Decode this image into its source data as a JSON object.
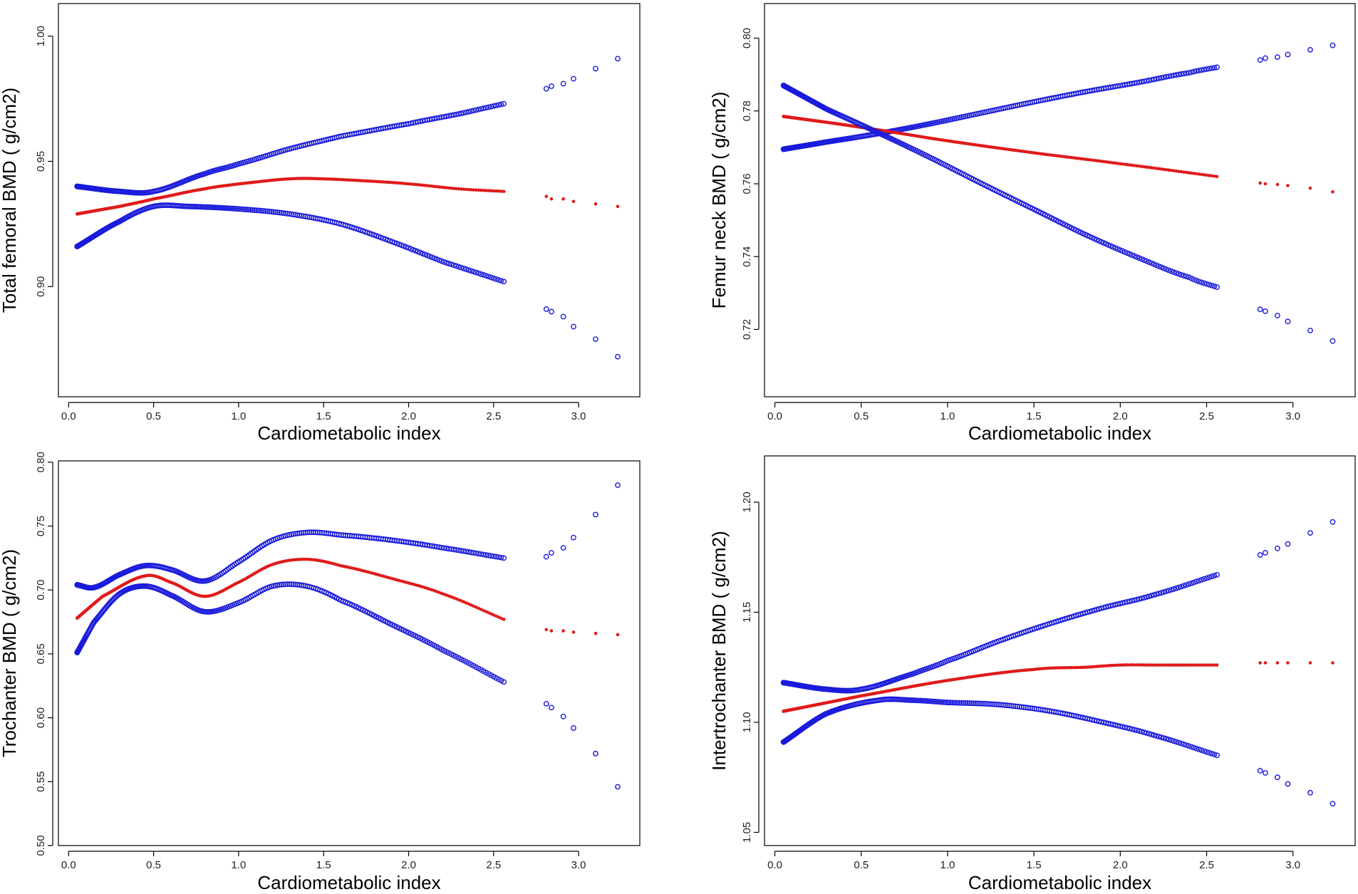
{
  "colors": {
    "ci": "#1a1adc",
    "fit": "#e01a1a",
    "axis": "#000000"
  },
  "chart_data": [
    {
      "type": "scatter",
      "xlabel": "Cardiometabolic index",
      "ylabel": "Total femoral BMD ( g/cm2)",
      "xticks": [
        0.0,
        0.5,
        1.0,
        1.5,
        2.0,
        2.5,
        3.0
      ],
      "yticks": [
        0.9,
        0.95,
        1.0
      ],
      "xlim": [
        -0.06,
        3.36
      ],
      "ylim": [
        0.856,
        1.013
      ],
      "series": [
        {
          "name": "upper CI",
          "role": "ci",
          "x": [
            0.05,
            0.3,
            0.5,
            0.8,
            1.0,
            1.3,
            1.6,
            2.0,
            2.3,
            2.56
          ],
          "y": [
            0.94,
            0.938,
            0.938,
            0.945,
            0.949,
            0.955,
            0.96,
            0.965,
            0.969,
            0.973
          ]
        },
        {
          "name": "fit",
          "role": "fit",
          "x": [
            0.05,
            0.3,
            0.5,
            0.8,
            1.0,
            1.3,
            1.5,
            1.8,
            2.0,
            2.3,
            2.56
          ],
          "y": [
            0.929,
            0.932,
            0.935,
            0.939,
            0.941,
            0.943,
            0.943,
            0.942,
            0.941,
            0.939,
            0.938
          ]
        },
        {
          "name": "lower CI",
          "role": "ci",
          "x": [
            0.05,
            0.3,
            0.5,
            0.7,
            1.0,
            1.3,
            1.6,
            1.9,
            2.2,
            2.56
          ],
          "y": [
            0.916,
            0.926,
            0.932,
            0.932,
            0.931,
            0.929,
            0.925,
            0.918,
            0.91,
            0.902
          ]
        }
      ],
      "outliers_x": [
        2.81,
        2.84,
        2.91,
        2.97,
        3.1,
        3.23
      ],
      "outliers": [
        {
          "role": "ci",
          "y": [
            0.979,
            0.98,
            0.981,
            0.983,
            0.987,
            0.991
          ]
        },
        {
          "role": "fit",
          "y": [
            0.936,
            0.935,
            0.935,
            0.934,
            0.933,
            0.932
          ]
        },
        {
          "role": "ci",
          "y": [
            0.891,
            0.89,
            0.888,
            0.884,
            0.879,
            0.872
          ]
        }
      ]
    },
    {
      "type": "scatter",
      "xlabel": "Cardiometabolic index",
      "ylabel": "Femur neck BMD ( g/cm2)",
      "xticks": [
        0.0,
        0.5,
        1.0,
        1.5,
        2.0,
        2.5,
        3.0
      ],
      "yticks": [
        0.72,
        0.74,
        0.76,
        0.78,
        0.8
      ],
      "xlim": [
        -0.06,
        3.36
      ],
      "ylim": [
        0.7015,
        0.8095
      ],
      "series": [
        {
          "name": "upper CI",
          "role": "ci",
          "x": [
            0.05,
            0.3,
            0.6,
            0.9,
            1.2,
            1.5,
            1.8,
            2.1,
            2.4,
            2.56
          ],
          "y": [
            0.7695,
            0.7715,
            0.7738,
            0.7765,
            0.7795,
            0.7825,
            0.7853,
            0.7878,
            0.7905,
            0.792
          ]
        },
        {
          "name": "fit",
          "role": "fit",
          "x": [
            0.05,
            0.5,
            1.0,
            1.5,
            2.0,
            2.56
          ],
          "y": [
            0.7785,
            0.7755,
            0.7718,
            0.7685,
            0.7655,
            0.762
          ]
        },
        {
          "name": "lower CI",
          "role": "ci",
          "x": [
            0.05,
            0.3,
            0.6,
            0.9,
            1.2,
            1.5,
            1.8,
            2.1,
            2.4,
            2.56
          ],
          "y": [
            0.787,
            0.7805,
            0.774,
            0.7672,
            0.76,
            0.753,
            0.746,
            0.7398,
            0.7343,
            0.7316
          ]
        }
      ],
      "outliers_x": [
        2.81,
        2.84,
        2.91,
        2.97,
        3.1,
        3.23
      ],
      "outliers": [
        {
          "role": "ci",
          "y": [
            0.794,
            0.7945,
            0.7948,
            0.7955,
            0.7968,
            0.798
          ]
        },
        {
          "role": "fit",
          "y": [
            0.7602,
            0.76,
            0.7598,
            0.7595,
            0.7588,
            0.7578
          ]
        },
        {
          "role": "ci",
          "y": [
            0.7255,
            0.725,
            0.7238,
            0.7222,
            0.7197,
            0.7168
          ]
        }
      ]
    },
    {
      "type": "scatter",
      "xlabel": "Cardiometabolic index",
      "ylabel": "Trochanter BMD ( g/cm2)",
      "xticks": [
        0.0,
        0.5,
        1.0,
        1.5,
        2.0,
        2.5,
        3.0
      ],
      "yticks": [
        0.5,
        0.55,
        0.6,
        0.65,
        0.7,
        0.75,
        0.8
      ],
      "xlim": [
        -0.06,
        3.36
      ],
      "ylim": [
        0.5,
        0.801
      ],
      "series": [
        {
          "name": "upper CI",
          "role": "ci",
          "x": [
            0.05,
            0.15,
            0.3,
            0.45,
            0.6,
            0.8,
            1.0,
            1.2,
            1.4,
            1.6,
            1.9,
            2.2,
            2.56
          ],
          "y": [
            0.704,
            0.702,
            0.712,
            0.719,
            0.716,
            0.707,
            0.722,
            0.739,
            0.745,
            0.743,
            0.739,
            0.733,
            0.725
          ]
        },
        {
          "name": "fit",
          "role": "fit",
          "x": [
            0.05,
            0.2,
            0.45,
            0.6,
            0.8,
            1.0,
            1.2,
            1.4,
            1.6,
            1.9,
            2.2,
            2.56
          ],
          "y": [
            0.678,
            0.695,
            0.711,
            0.706,
            0.695,
            0.706,
            0.72,
            0.724,
            0.719,
            0.709,
            0.697,
            0.677
          ]
        },
        {
          "name": "lower CI",
          "role": "ci",
          "x": [
            0.05,
            0.15,
            0.3,
            0.45,
            0.6,
            0.8,
            1.0,
            1.2,
            1.4,
            1.6,
            1.9,
            2.2,
            2.56
          ],
          "y": [
            0.651,
            0.675,
            0.697,
            0.703,
            0.696,
            0.683,
            0.69,
            0.703,
            0.703,
            0.692,
            0.673,
            0.653,
            0.628
          ]
        }
      ],
      "outliers_x": [
        2.81,
        2.84,
        2.91,
        2.97,
        3.1,
        3.23
      ],
      "outliers": [
        {
          "role": "ci",
          "y": [
            0.726,
            0.729,
            0.733,
            0.741,
            0.759,
            0.782
          ]
        },
        {
          "role": "fit",
          "y": [
            0.669,
            0.668,
            0.668,
            0.667,
            0.666,
            0.665
          ]
        },
        {
          "role": "ci",
          "y": [
            0.611,
            0.608,
            0.601,
            0.592,
            0.572,
            0.546
          ]
        }
      ]
    },
    {
      "type": "scatter",
      "xlabel": "Cardiometabolic index",
      "ylabel": "Intertrochanter BMD ( g/cm2)",
      "xticks": [
        0.0,
        0.5,
        1.0,
        1.5,
        2.0,
        2.5,
        3.0
      ],
      "yticks": [
        1.05,
        1.1,
        1.15,
        1.2
      ],
      "xlim": [
        -0.06,
        3.36
      ],
      "ylim": [
        1.044,
        1.221
      ],
      "series": [
        {
          "name": "upper CI",
          "role": "ci",
          "x": [
            0.05,
            0.3,
            0.5,
            0.8,
            1.0,
            1.3,
            1.6,
            1.9,
            2.2,
            2.56
          ],
          "y": [
            1.118,
            1.115,
            1.115,
            1.122,
            1.128,
            1.137,
            1.145,
            1.152,
            1.158,
            1.167
          ]
        },
        {
          "name": "fit",
          "role": "fit",
          "x": [
            0.05,
            0.5,
            1.0,
            1.5,
            1.8,
            2.0,
            2.2,
            2.56
          ],
          "y": [
            1.105,
            1.112,
            1.119,
            1.124,
            1.125,
            1.126,
            1.126,
            1.126
          ]
        },
        {
          "name": "lower CI",
          "role": "ci",
          "x": [
            0.05,
            0.3,
            0.6,
            0.8,
            1.0,
            1.3,
            1.6,
            1.9,
            2.2,
            2.56
          ],
          "y": [
            1.091,
            1.104,
            1.11,
            1.11,
            1.109,
            1.108,
            1.105,
            1.1,
            1.094,
            1.085
          ]
        }
      ],
      "outliers_x": [
        2.81,
        2.84,
        2.91,
        2.97,
        3.1,
        3.23
      ],
      "outliers": [
        {
          "role": "ci",
          "y": [
            1.176,
            1.177,
            1.179,
            1.181,
            1.186,
            1.191
          ]
        },
        {
          "role": "fit",
          "y": [
            1.127,
            1.127,
            1.127,
            1.127,
            1.127,
            1.127
          ]
        },
        {
          "role": "ci",
          "y": [
            1.078,
            1.077,
            1.075,
            1.072,
            1.068,
            1.063
          ]
        }
      ]
    }
  ]
}
